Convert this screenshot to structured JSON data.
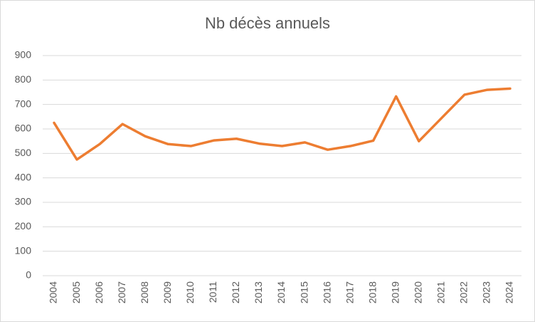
{
  "chart_data": {
    "type": "line",
    "title": "Nb décès annuels",
    "categories": [
      "2004",
      "2005",
      "2006",
      "2007",
      "2008",
      "2009",
      "2010",
      "2011",
      "2012",
      "2013",
      "2014",
      "2015",
      "2016",
      "2017",
      "2018",
      "2019",
      "2020",
      "2021",
      "2022",
      "2023",
      "2024"
    ],
    "values": [
      625,
      475,
      538,
      620,
      570,
      538,
      530,
      553,
      560,
      540,
      530,
      545,
      515,
      530,
      552,
      733,
      550,
      645,
      740,
      760,
      765
    ],
    "color": "#ed7d31",
    "ylim": [
      0,
      900
    ],
    "yticks": [
      0,
      100,
      200,
      300,
      400,
      500,
      600,
      700,
      800,
      900
    ],
    "grid": true
  }
}
